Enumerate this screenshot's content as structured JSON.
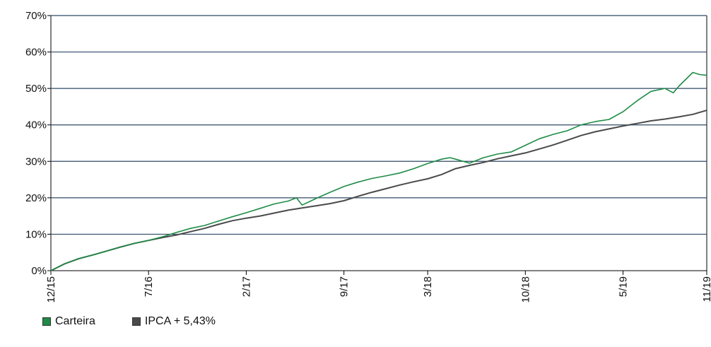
{
  "chart_data": {
    "type": "line",
    "y_unit": "%",
    "ylim": [
      0,
      70
    ],
    "y_ticks": [
      "0%",
      "10%",
      "20%",
      "30%",
      "40%",
      "50%",
      "60%",
      "70%"
    ],
    "y_tick_values": [
      0,
      10,
      20,
      30,
      40,
      50,
      60,
      70
    ],
    "x_ticks": [
      "12/15",
      "7/16",
      "2/17",
      "9/17",
      "3/18",
      "10/18",
      "5/19",
      "11/19"
    ],
    "x_tick_months": [
      0,
      7,
      14,
      21,
      27,
      34,
      41,
      47
    ],
    "xlim_months": [
      0,
      47
    ],
    "grid": true,
    "legend_position": "bottom-left",
    "series": [
      {
        "name": "Carteira",
        "color": "#1e8c46",
        "points": [
          [
            0,
            0
          ],
          [
            1,
            1.9
          ],
          [
            2,
            3.3
          ],
          [
            3,
            4.3
          ],
          [
            4,
            5.4
          ],
          [
            5,
            6.5
          ],
          [
            6,
            7.5
          ],
          [
            7,
            8.3
          ],
          [
            8,
            9.3
          ],
          [
            9,
            10.5
          ],
          [
            10,
            11.6
          ],
          [
            11,
            12.4
          ],
          [
            12,
            13.6
          ],
          [
            13,
            14.8
          ],
          [
            14,
            15.9
          ],
          [
            15,
            17.1
          ],
          [
            16,
            18.3
          ],
          [
            17,
            19.1
          ],
          [
            17.6,
            20.0
          ],
          [
            18,
            18.0
          ],
          [
            19,
            19.8
          ],
          [
            20,
            21.5
          ],
          [
            21,
            23.1
          ],
          [
            22,
            24.3
          ],
          [
            23,
            25.3
          ],
          [
            24,
            26.0
          ],
          [
            25,
            26.8
          ],
          [
            26,
            28.0
          ],
          [
            27,
            29.4
          ],
          [
            28,
            30.6
          ],
          [
            28.6,
            31.0
          ],
          [
            29,
            30.6
          ],
          [
            30,
            29.5
          ],
          [
            31,
            31.0
          ],
          [
            32,
            32.0
          ],
          [
            33,
            32.6
          ],
          [
            34,
            34.4
          ],
          [
            35,
            36.2
          ],
          [
            36,
            37.4
          ],
          [
            37,
            38.4
          ],
          [
            38,
            40.0
          ],
          [
            39,
            40.9
          ],
          [
            40,
            41.5
          ],
          [
            41,
            43.6
          ],
          [
            42,
            46.6
          ],
          [
            43,
            49.2
          ],
          [
            44,
            50.0
          ],
          [
            44.6,
            48.8
          ],
          [
            45,
            50.6
          ],
          [
            46,
            54.4
          ],
          [
            46.5,
            53.8
          ],
          [
            47,
            53.6
          ]
        ]
      },
      {
        "name": "IPCA + 5,43%",
        "color": "#4a4a4a",
        "points": [
          [
            0,
            0
          ],
          [
            1,
            1.9
          ],
          [
            2,
            3.3
          ],
          [
            3,
            4.3
          ],
          [
            4,
            5.4
          ],
          [
            5,
            6.5
          ],
          [
            6,
            7.5
          ],
          [
            7,
            8.3
          ],
          [
            8,
            9.1
          ],
          [
            9,
            9.8
          ],
          [
            10,
            10.7
          ],
          [
            11,
            11.6
          ],
          [
            12,
            12.7
          ],
          [
            13,
            13.7
          ],
          [
            14,
            14.4
          ],
          [
            15,
            15.0
          ],
          [
            16,
            15.8
          ],
          [
            17,
            16.6
          ],
          [
            18,
            17.2
          ],
          [
            19,
            17.8
          ],
          [
            20,
            18.4
          ],
          [
            21,
            19.2
          ],
          [
            22,
            20.4
          ],
          [
            23,
            21.5
          ],
          [
            24,
            22.5
          ],
          [
            25,
            23.5
          ],
          [
            26,
            24.4
          ],
          [
            27,
            25.2
          ],
          [
            28,
            26.4
          ],
          [
            29,
            28.0
          ],
          [
            30,
            28.9
          ],
          [
            31,
            29.7
          ],
          [
            32,
            30.7
          ],
          [
            33,
            31.5
          ],
          [
            34,
            32.3
          ],
          [
            35,
            33.4
          ],
          [
            36,
            34.5
          ],
          [
            37,
            35.8
          ],
          [
            38,
            37.1
          ],
          [
            39,
            38.1
          ],
          [
            40,
            38.9
          ],
          [
            41,
            39.7
          ],
          [
            42,
            40.4
          ],
          [
            43,
            41.1
          ],
          [
            44,
            41.6
          ],
          [
            45,
            42.2
          ],
          [
            46,
            42.9
          ],
          [
            47,
            44.0
          ]
        ]
      }
    ]
  }
}
